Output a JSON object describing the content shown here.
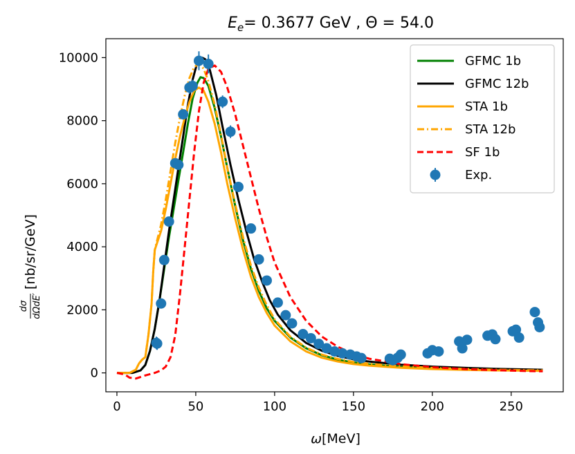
{
  "chart_data": {
    "type": "line",
    "title_parts": {
      "symbol": "E",
      "subscript": "e",
      "rest": "= 0.3677 GeV , Θ = 54.0"
    },
    "xlabel_parts": {
      "symbol": "ω",
      "rest": "[MeV]"
    },
    "ylabel_parts": {
      "numerator": "dσ",
      "denominator": "dΩdE′",
      "rest": "[nb/sr/GeV]"
    },
    "xlim": [
      -7,
      283
    ],
    "ylim": [
      -600,
      10600
    ],
    "xticks": [
      0,
      50,
      100,
      150,
      200,
      250
    ],
    "yticks": [
      0,
      2000,
      4000,
      6000,
      8000,
      10000
    ],
    "legend_position": "top-right",
    "series": [
      {
        "name": "GFMC 1b",
        "color": "#008000",
        "dash": "solid",
        "points": [
          [
            0,
            0
          ],
          [
            10,
            0
          ],
          [
            15,
            80
          ],
          [
            18,
            250
          ],
          [
            21,
            700
          ],
          [
            24,
            1400
          ],
          [
            27,
            2300
          ],
          [
            30,
            3300
          ],
          [
            33,
            4300
          ],
          [
            36,
            5200
          ],
          [
            39,
            6100
          ],
          [
            42,
            7000
          ],
          [
            45,
            7900
          ],
          [
            48,
            8700
          ],
          [
            51,
            9200
          ],
          [
            53,
            9380
          ],
          [
            55,
            9350
          ],
          [
            58,
            9100
          ],
          [
            62,
            8400
          ],
          [
            66,
            7500
          ],
          [
            70,
            6500
          ],
          [
            75,
            5300
          ],
          [
            80,
            4200
          ],
          [
            85,
            3300
          ],
          [
            90,
            2600
          ],
          [
            95,
            2050
          ],
          [
            100,
            1650
          ],
          [
            110,
            1120
          ],
          [
            120,
            780
          ],
          [
            130,
            560
          ],
          [
            140,
            420
          ],
          [
            150,
            330
          ],
          [
            160,
            270
          ],
          [
            180,
            190
          ],
          [
            200,
            140
          ],
          [
            220,
            110
          ],
          [
            240,
            90
          ],
          [
            260,
            75
          ],
          [
            270,
            70
          ]
        ]
      },
      {
        "name": "GFMC 12b",
        "color": "#000000",
        "dash": "solid",
        "points": [
          [
            0,
            0
          ],
          [
            10,
            0
          ],
          [
            15,
            80
          ],
          [
            18,
            250
          ],
          [
            21,
            700
          ],
          [
            24,
            1400
          ],
          [
            27,
            2300
          ],
          [
            30,
            3400
          ],
          [
            33,
            4500
          ],
          [
            36,
            5500
          ],
          [
            39,
            6500
          ],
          [
            42,
            7500
          ],
          [
            45,
            8500
          ],
          [
            48,
            9300
          ],
          [
            51,
            9850
          ],
          [
            54,
            10000
          ],
          [
            56,
            9950
          ],
          [
            59,
            9600
          ],
          [
            63,
            8800
          ],
          [
            67,
            7800
          ],
          [
            72,
            6600
          ],
          [
            77,
            5500
          ],
          [
            82,
            4500
          ],
          [
            87,
            3600
          ],
          [
            92,
            2900
          ],
          [
            97,
            2300
          ],
          [
            102,
            1850
          ],
          [
            110,
            1350
          ],
          [
            120,
            950
          ],
          [
            130,
            700
          ],
          [
            140,
            540
          ],
          [
            150,
            430
          ],
          [
            160,
            360
          ],
          [
            180,
            260
          ],
          [
            200,
            200
          ],
          [
            220,
            160
          ],
          [
            240,
            130
          ],
          [
            260,
            110
          ],
          [
            270,
            100
          ]
        ]
      },
      {
        "name": "STA 1b",
        "color": "#FFA500",
        "dash": "solid",
        "points": [
          [
            0,
            0
          ],
          [
            8,
            0
          ],
          [
            12,
            100
          ],
          [
            14,
            300
          ],
          [
            16,
            420
          ],
          [
            18,
            500
          ],
          [
            20,
            1200
          ],
          [
            22,
            2200
          ],
          [
            23,
            3200
          ],
          [
            24,
            3900
          ],
          [
            26,
            4200
          ],
          [
            28,
            4500
          ],
          [
            31,
            5200
          ],
          [
            34,
            6000
          ],
          [
            37,
            6800
          ],
          [
            40,
            7500
          ],
          [
            43,
            8100
          ],
          [
            46,
            8600
          ],
          [
            49,
            8950
          ],
          [
            52,
            9050
          ],
          [
            55,
            8950
          ],
          [
            58,
            8600
          ],
          [
            62,
            7900
          ],
          [
            66,
            7000
          ],
          [
            70,
            6000
          ],
          [
            75,
            4900
          ],
          [
            80,
            3900
          ],
          [
            85,
            3050
          ],
          [
            90,
            2400
          ],
          [
            95,
            1900
          ],
          [
            100,
            1500
          ],
          [
            110,
            1000
          ],
          [
            120,
            680
          ],
          [
            130,
            480
          ],
          [
            140,
            360
          ],
          [
            150,
            280
          ],
          [
            160,
            230
          ],
          [
            180,
            160
          ],
          [
            200,
            120
          ],
          [
            220,
            95
          ],
          [
            240,
            80
          ],
          [
            260,
            70
          ],
          [
            270,
            65
          ]
        ]
      },
      {
        "name": "STA 12b",
        "color": "#FFA500",
        "dash": "dashdot",
        "points": [
          [
            0,
            0
          ],
          [
            8,
            0
          ],
          [
            12,
            100
          ],
          [
            14,
            300
          ],
          [
            16,
            420
          ],
          [
            18,
            500
          ],
          [
            20,
            1200
          ],
          [
            22,
            2200
          ],
          [
            23,
            3200
          ],
          [
            24,
            3900
          ],
          [
            26,
            4300
          ],
          [
            28,
            4700
          ],
          [
            31,
            5500
          ],
          [
            34,
            6400
          ],
          [
            37,
            7300
          ],
          [
            40,
            8100
          ],
          [
            43,
            8800
          ],
          [
            46,
            9350
          ],
          [
            49,
            9700
          ],
          [
            52,
            9800
          ],
          [
            55,
            9650
          ],
          [
            58,
            9250
          ],
          [
            62,
            8500
          ],
          [
            66,
            7550
          ],
          [
            70,
            6500
          ],
          [
            75,
            5350
          ],
          [
            80,
            4300
          ],
          [
            85,
            3400
          ],
          [
            90,
            2700
          ],
          [
            95,
            2150
          ],
          [
            100,
            1700
          ],
          [
            110,
            1150
          ],
          [
            120,
            800
          ],
          [
            130,
            580
          ],
          [
            140,
            440
          ],
          [
            150,
            350
          ],
          [
            160,
            290
          ],
          [
            180,
            210
          ],
          [
            200,
            160
          ],
          [
            220,
            125
          ],
          [
            240,
            100
          ],
          [
            260,
            85
          ],
          [
            270,
            80
          ]
        ]
      },
      {
        "name": "SF 1b",
        "color": "#FF0000",
        "dash": "dashed",
        "points": [
          [
            0,
            0
          ],
          [
            5,
            -50
          ],
          [
            8,
            -150
          ],
          [
            12,
            -180
          ],
          [
            18,
            -80
          ],
          [
            24,
            0
          ],
          [
            28,
            80
          ],
          [
            31,
            200
          ],
          [
            34,
            500
          ],
          [
            37,
            1200
          ],
          [
            40,
            2500
          ],
          [
            43,
            4000
          ],
          [
            46,
            5500
          ],
          [
            49,
            7000
          ],
          [
            52,
            8300
          ],
          [
            55,
            9200
          ],
          [
            58,
            9650
          ],
          [
            62,
            9750
          ],
          [
            66,
            9550
          ],
          [
            70,
            9050
          ],
          [
            75,
            8200
          ],
          [
            80,
            7200
          ],
          [
            85,
            6200
          ],
          [
            90,
            5200
          ],
          [
            95,
            4300
          ],
          [
            100,
            3500
          ],
          [
            110,
            2400
          ],
          [
            120,
            1650
          ],
          [
            130,
            1150
          ],
          [
            140,
            830
          ],
          [
            150,
            600
          ],
          [
            160,
            450
          ],
          [
            180,
            280
          ],
          [
            200,
            180
          ],
          [
            220,
            120
          ],
          [
            240,
            85
          ],
          [
            260,
            60
          ],
          [
            270,
            50
          ]
        ]
      }
    ],
    "experiment": {
      "name": "Exp.",
      "color": "#1F77B4",
      "points": [
        [
          25,
          950
        ],
        [
          25.5,
          930
        ],
        [
          28,
          2200
        ],
        [
          30,
          3580
        ],
        [
          33,
          4800
        ],
        [
          37,
          6650
        ],
        [
          39,
          6600
        ],
        [
          42,
          8200
        ],
        [
          46,
          9050
        ],
        [
          48,
          9100
        ],
        [
          52,
          9900
        ],
        [
          58,
          9800
        ],
        [
          67,
          8600
        ],
        [
          72,
          7650
        ],
        [
          77,
          5900
        ],
        [
          85,
          4580
        ],
        [
          90,
          3600
        ],
        [
          95,
          2930
        ],
        [
          102,
          2230
        ],
        [
          107,
          1830
        ],
        [
          111,
          1570
        ],
        [
          118,
          1230
        ],
        [
          123,
          1100
        ],
        [
          128,
          920
        ],
        [
          133,
          780
        ],
        [
          138,
          680
        ],
        [
          143,
          620
        ],
        [
          148,
          580
        ],
        [
          152,
          520
        ],
        [
          155,
          470
        ],
        [
          173,
          450
        ],
        [
          175,
          400
        ],
        [
          178,
          480
        ],
        [
          180,
          580
        ],
        [
          197,
          620
        ],
        [
          200,
          720
        ],
        [
          204,
          680
        ],
        [
          217,
          1000
        ],
        [
          219,
          780
        ],
        [
          222,
          1050
        ],
        [
          235,
          1180
        ],
        [
          238,
          1220
        ],
        [
          240,
          1070
        ],
        [
          251,
          1320
        ],
        [
          253,
          1370
        ],
        [
          255,
          1120
        ],
        [
          265,
          1930
        ],
        [
          267,
          1600
        ],
        [
          268,
          1450
        ]
      ],
      "errors": [
        200,
        200,
        100,
        100,
        100,
        150,
        150,
        150,
        200,
        200,
        300,
        300,
        200,
        200,
        150,
        150,
        150,
        100,
        100,
        100,
        100,
        80,
        80,
        80,
        80,
        80,
        80,
        80,
        80,
        80,
        80,
        80,
        80,
        80,
        80,
        80,
        80,
        80,
        80,
        80,
        80,
        80,
        80,
        80,
        80,
        80,
        100,
        100,
        100
      ]
    }
  }
}
